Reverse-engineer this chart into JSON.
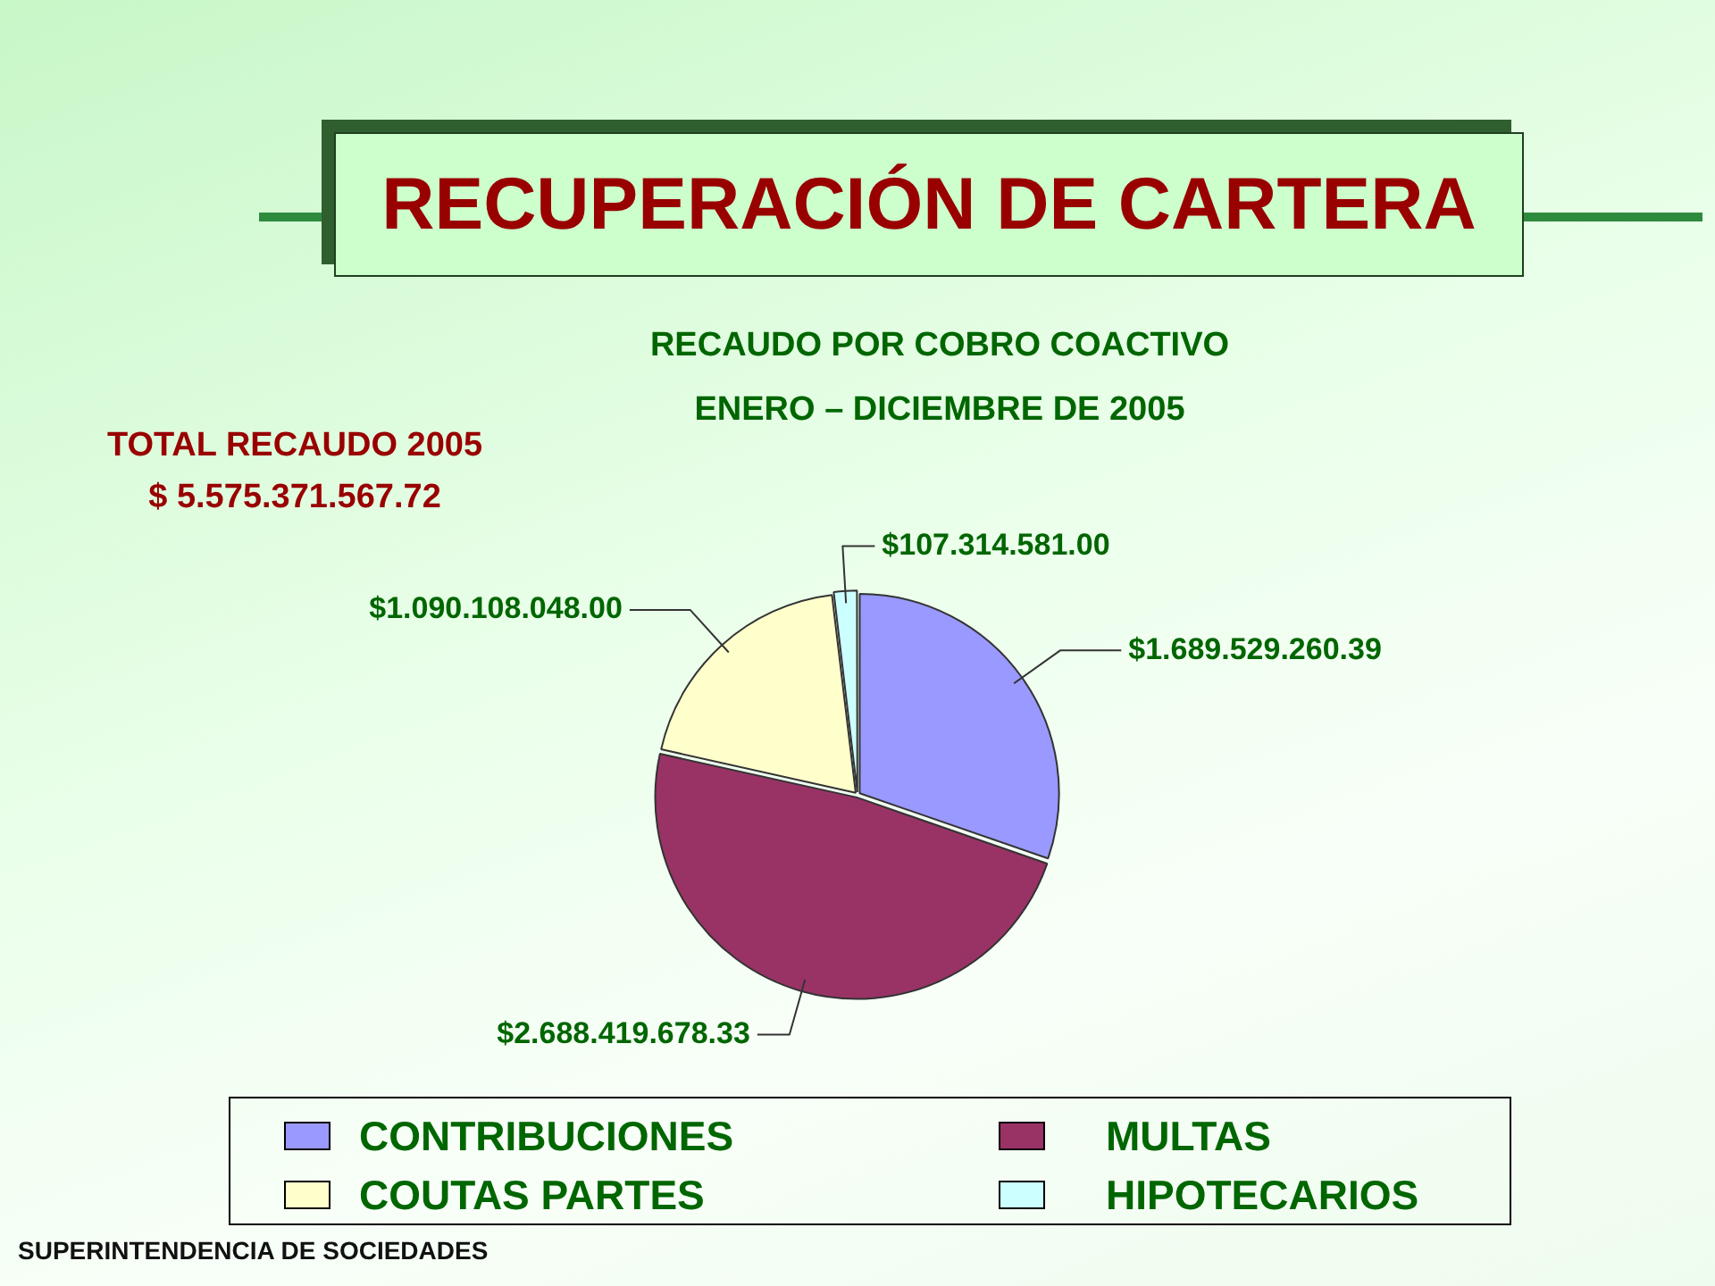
{
  "chart_data": {
    "type": "pie",
    "title": "RECUPERACIÓN DE CARTERA",
    "subtitle": "RECAUDO POR COBRO COACTIVO\nENERO – DICIEMBRE DE 2005",
    "categories": [
      "CONTRIBUCIONES",
      "MULTAS",
      "COUTAS PARTES",
      "HIPOTECARIOS"
    ],
    "values": [
      30.3,
      48.2,
      19.6,
      1.9
    ],
    "colors": [
      "#9999ff",
      "#993366",
      "#ffffcc",
      "#ccffff"
    ],
    "value_labels": [
      "$1.689.529.260.39",
      "$2.688.419.678.33",
      "$1.090.108.048.00",
      "$107.314.581.00"
    ],
    "legend": "bottom",
    "annotations": [
      "TOTAL RECAUDO 2005\n$ 5.575.371.567.72",
      "SUPERINTENDENCIA DE SOCIEDADES"
    ]
  }
}
